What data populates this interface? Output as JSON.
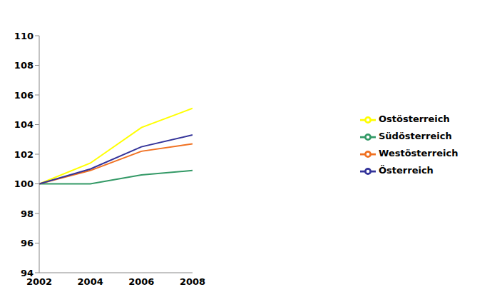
{
  "chart_data": {
    "type": "line",
    "x": [
      2002,
      2004,
      2006,
      2008
    ],
    "xlim": [
      2002,
      2008
    ],
    "xticks": [
      2002,
      2004,
      2006,
      2008
    ],
    "ylim": [
      94,
      110
    ],
    "yticks": [
      94,
      96,
      98,
      100,
      102,
      104,
      106,
      108,
      110
    ],
    "grid": false,
    "legend": "right",
    "series": [
      {
        "name": "Ostösterreich",
        "color": "#ffff00",
        "values": [
          100,
          101.4,
          103.8,
          105.1
        ]
      },
      {
        "name": "Südösterreich",
        "color": "#339966",
        "values": [
          100,
          100,
          100.6,
          100.9
        ]
      },
      {
        "name": "Westösterreich",
        "color": "#f07020",
        "values": [
          100,
          100.9,
          102.2,
          102.7
        ]
      },
      {
        "name": "Österreich",
        "color": "#333399",
        "values": [
          100,
          101,
          102.5,
          103.3
        ]
      }
    ]
  }
}
